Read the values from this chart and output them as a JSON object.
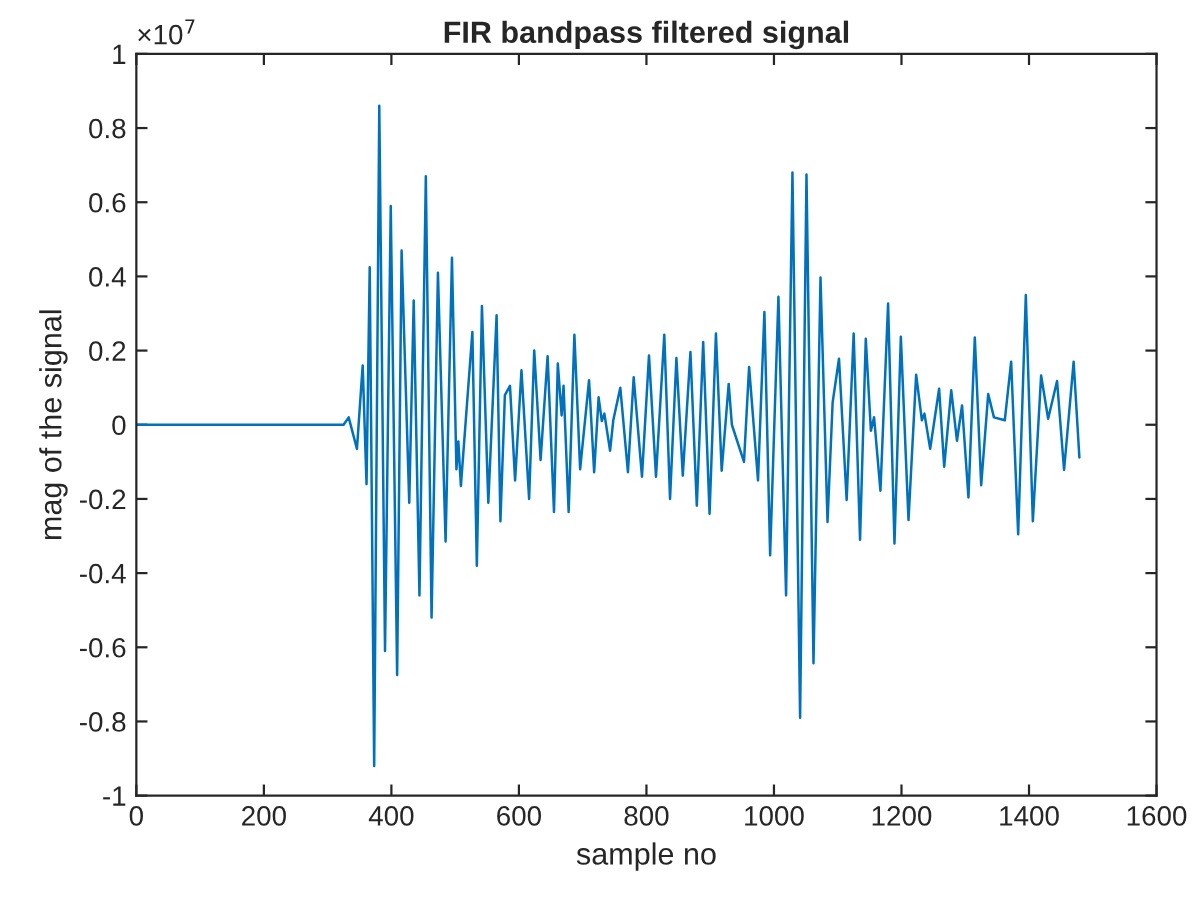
{
  "chart_data": {
    "type": "line",
    "title": "FIR bandpass filtered signal",
    "xlabel": "sample no",
    "ylabel": "mag of the signal",
    "annotations": [
      "×10$^{7}$"
    ],
    "xlim": [
      0,
      1600
    ],
    "xticks": [
      0,
      200,
      400,
      600,
      800,
      1000,
      1200,
      1400,
      1600
    ],
    "ylim": [
      -1,
      1
    ],
    "yticks": [
      -1,
      -0.8,
      -0.6,
      -0.4,
      -0.2,
      0,
      0.2,
      0.4,
      0.6,
      0.8,
      1
    ],
    "grid": false,
    "marker": "none",
    "line_style": "solid",
    "series": [
      {
        "color": "#0072bd",
        "x": [
          0,
          325,
          333,
          346,
          355,
          361,
          366,
          373,
          381,
          390,
          399,
          409,
          416,
          428,
          435,
          444,
          454,
          463,
          473,
          485,
          495,
          502,
          505,
          509,
          517,
          527,
          534,
          542,
          552,
          565,
          571,
          578,
          586,
          594,
          604,
          616,
          624,
          634,
          645,
          655,
          661,
          667,
          670,
          678,
          687,
          696,
          710,
          718,
          725,
          730,
          734,
          743,
          748,
          759,
          771,
          780,
          793,
          804,
          815,
          828,
          837,
          847,
          857,
          869,
          879,
          889,
          899,
          909,
          918,
          929,
          934,
          953,
          961,
          975,
          985,
          994,
          1007,
          1019,
          1029,
          1041,
          1051,
          1062,
          1073,
          1084,
          1092,
          1102,
          1114,
          1125,
          1135,
          1144,
          1152,
          1157,
          1167,
          1179,
          1189,
          1199,
          1211,
          1223,
          1232,
          1236,
          1245,
          1259,
          1267,
          1278,
          1287,
          1295,
          1305,
          1315,
          1325,
          1336,
          1345,
          1362,
          1372,
          1383,
          1395,
          1406,
          1419,
          1430,
          1444,
          1455,
          1470,
          1479
        ],
        "values": [
          0,
          0,
          0.02,
          -0.065,
          0.16,
          -0.16,
          0.425,
          -0.92,
          0.86,
          -0.61,
          0.59,
          -0.675,
          0.47,
          -0.21,
          0.335,
          -0.46,
          0.67,
          -0.52,
          0.41,
          -0.315,
          0.45,
          -0.12,
          -0.045,
          -0.165,
          0.02,
          0.25,
          -0.38,
          0.32,
          -0.21,
          0.295,
          -0.26,
          0.08,
          0.105,
          -0.15,
          0.147,
          -0.2,
          0.2,
          -0.095,
          0.185,
          -0.235,
          0.165,
          0.025,
          0.105,
          -0.235,
          0.243,
          -0.12,
          0.12,
          -0.128,
          0.074,
          0.01,
          0.03,
          -0.07,
          0.012,
          0.1,
          -0.128,
          0.128,
          -0.14,
          0.187,
          -0.14,
          0.243,
          -0.2,
          0.18,
          -0.137,
          0.196,
          -0.218,
          0.223,
          -0.24,
          0.246,
          -0.124,
          0.11,
          0.0,
          -0.1,
          0.156,
          -0.15,
          0.304,
          -0.352,
          0.345,
          -0.46,
          0.68,
          -0.79,
          0.675,
          -0.643,
          0.397,
          -0.262,
          0.06,
          0.178,
          -0.203,
          0.246,
          -0.31,
          0.232,
          -0.016,
          0.02,
          -0.178,
          0.327,
          -0.32,
          0.237,
          -0.257,
          0.135,
          0.012,
          0.03,
          -0.065,
          0.097,
          -0.113,
          0.093,
          -0.043,
          0.052,
          -0.196,
          0.235,
          -0.163,
          0.083,
          0.02,
          0.012,
          0.17,
          -0.295,
          0.35,
          -0.26,
          0.133,
          0.016,
          0.118,
          -0.122,
          0.17,
          -0.088
        ]
      }
    ]
  }
}
